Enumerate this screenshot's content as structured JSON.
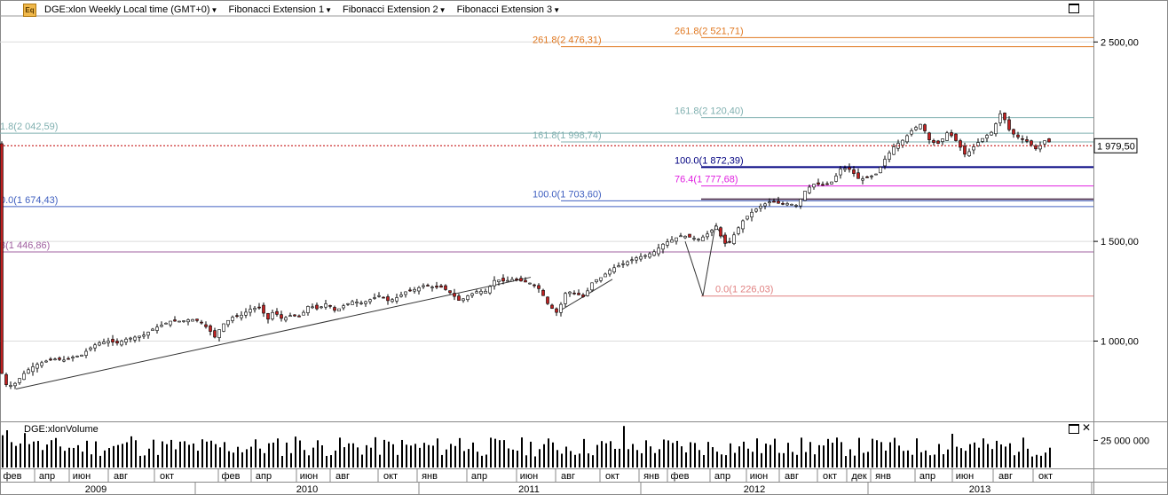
{
  "header": {
    "icon_label": "Eq",
    "symbol_title": "DGE:xlon Weekly Local time (GMT+0)",
    "menus": [
      "Fibonacci Extension 1",
      "Fibonacci Extension 2",
      "Fibonacci Extension 3"
    ]
  },
  "volume_panel": {
    "title": "DGE:xlonVolume"
  },
  "colors": {
    "candle_up": "#ffffff",
    "candle_down": "#c02020",
    "grid": "#dcdcdc",
    "current_price_line": "#c00000",
    "fib_orange": "#e07820",
    "fib_teal": "#80b0b0",
    "fib_navy": "#000080",
    "fib_magenta": "#e020e0",
    "fib_red": "#e08080",
    "fib_purple": "#a060a0"
  },
  "chart_data": {
    "type": "candlestick",
    "period": "Weekly",
    "price_axis": {
      "ticks": [
        "2 500,00",
        "1 500,00",
        "1 000,00"
      ],
      "tick_values": [
        2500,
        1500,
        1000
      ],
      "ylim": [
        700,
        2640
      ]
    },
    "current_price": {
      "label": "1 979,50",
      "value": 1979.5
    },
    "volume_axis": {
      "ticks": [
        "25 000 000"
      ]
    },
    "x_axis_months": [
      "фев",
      "апр",
      "июн",
      "авг",
      "окт",
      "фев",
      "апр",
      "июн",
      "авг",
      "окт",
      "янв",
      "апр",
      "июн",
      "авг",
      "окт",
      "янв",
      "фев",
      "апр",
      "июн",
      "авг",
      "окт",
      "дек",
      "янв",
      "апр",
      "июн",
      "авг",
      "окт"
    ],
    "x_axis_years": [
      "2009",
      "2010",
      "2011",
      "2012",
      "2013"
    ],
    "fibonacci_levels": [
      {
        "label": "261.8(2 521,71)",
        "value": 2521.71,
        "color": "#e07820"
      },
      {
        "label": "261.8(2 476,31)",
        "value": 2476.31,
        "color": "#e07820"
      },
      {
        "label": "161.8(2 120,40)",
        "value": 2120.4,
        "color": "#80b0b0"
      },
      {
        "label": "1.8(2 042,59)",
        "value": 2042.59,
        "color": "#80b0b0"
      },
      {
        "label": "161.8(1 998,74)",
        "value": 1998.74,
        "color": "#80b0b0"
      },
      {
        "label": "100.0(1 872,39)",
        "value": 1872.39,
        "color": "#000080"
      },
      {
        "label": "76.4(1 777,68)",
        "value": 1777.68,
        "color": "#e020e0"
      },
      {
        "label": "100.0(1 703,60)",
        "value": 1703.6,
        "color": "#4060c0"
      },
      {
        "label": "0.0(1 674,43)",
        "value": 1674.43,
        "color": "#4060c0"
      },
      {
        "label": "8(1 446,86)",
        "value": 1446.86,
        "color": "#a060a0"
      },
      {
        "label": "0.0(1 226,03)",
        "value": 1226.03,
        "color": "#e08080"
      }
    ],
    "price_path": [
      [
        0,
        860
      ],
      [
        8,
        770
      ],
      [
        18,
        790
      ],
      [
        25,
        830
      ],
      [
        33,
        860
      ],
      [
        40,
        880
      ],
      [
        52,
        900
      ],
      [
        62,
        910
      ],
      [
        72,
        905
      ],
      [
        82,
        920
      ],
      [
        92,
        930
      ],
      [
        100,
        960
      ],
      [
        110,
        990
      ],
      [
        122,
        1000
      ],
      [
        132,
        990
      ],
      [
        142,
        1010
      ],
      [
        152,
        1020
      ],
      [
        162,
        1030
      ],
      [
        172,
        1060
      ],
      [
        182,
        1080
      ],
      [
        192,
        1100
      ],
      [
        205,
        1100
      ],
      [
        215,
        1110
      ],
      [
        225,
        1100
      ],
      [
        235,
        1060
      ],
      [
        242,
        1020
      ],
      [
        250,
        1080
      ],
      [
        262,
        1120
      ],
      [
        272,
        1130
      ],
      [
        282,
        1160
      ],
      [
        292,
        1170
      ],
      [
        302,
        1110
      ],
      [
        308,
        1150
      ],
      [
        318,
        1110
      ],
      [
        328,
        1130
      ],
      [
        338,
        1120
      ],
      [
        348,
        1180
      ],
      [
        358,
        1160
      ],
      [
        368,
        1190
      ],
      [
        378,
        1150
      ],
      [
        388,
        1180
      ],
      [
        398,
        1200
      ],
      [
        408,
        1190
      ],
      [
        418,
        1210
      ],
      [
        428,
        1230
      ],
      [
        438,
        1200
      ],
      [
        448,
        1220
      ],
      [
        458,
        1250
      ],
      [
        468,
        1260
      ],
      [
        478,
        1280
      ],
      [
        488,
        1270
      ],
      [
        498,
        1270
      ],
      [
        508,
        1240
      ],
      [
        518,
        1200
      ],
      [
        528,
        1230
      ],
      [
        538,
        1250
      ],
      [
        548,
        1250
      ],
      [
        558,
        1310
      ],
      [
        568,
        1300
      ],
      [
        578,
        1310
      ],
      [
        588,
        1300
      ],
      [
        598,
        1290
      ],
      [
        608,
        1260
      ],
      [
        618,
        1180
      ],
      [
        628,
        1140
      ],
      [
        638,
        1250
      ],
      [
        648,
        1240
      ],
      [
        658,
        1220
      ],
      [
        668,
        1300
      ],
      [
        678,
        1320
      ],
      [
        688,
        1360
      ],
      [
        698,
        1380
      ],
      [
        708,
        1400
      ],
      [
        718,
        1420
      ],
      [
        728,
        1430
      ],
      [
        738,
        1450
      ],
      [
        748,
        1490
      ],
      [
        758,
        1510
      ],
      [
        768,
        1530
      ],
      [
        778,
        1520
      ],
      [
        788,
        1510
      ],
      [
        798,
        1540
      ],
      [
        808,
        1580
      ],
      [
        814,
        1500
      ],
      [
        820,
        1480
      ],
      [
        828,
        1540
      ],
      [
        838,
        1610
      ],
      [
        848,
        1650
      ],
      [
        858,
        1680
      ],
      [
        868,
        1700
      ],
      [
        878,
        1690
      ],
      [
        888,
        1690
      ],
      [
        898,
        1680
      ],
      [
        908,
        1760
      ],
      [
        918,
        1790
      ],
      [
        928,
        1780
      ],
      [
        938,
        1800
      ],
      [
        948,
        1870
      ],
      [
        958,
        1860
      ],
      [
        968,
        1810
      ],
      [
        978,
        1820
      ],
      [
        988,
        1840
      ],
      [
        998,
        1920
      ],
      [
        1008,
        1980
      ],
      [
        1018,
        2010
      ],
      [
        1028,
        2060
      ],
      [
        1038,
        2090
      ],
      [
        1048,
        2000
      ],
      [
        1058,
        1990
      ],
      [
        1068,
        2050
      ],
      [
        1078,
        2000
      ],
      [
        1088,
        1930
      ],
      [
        1098,
        1980
      ],
      [
        1108,
        2020
      ],
      [
        1118,
        2050
      ],
      [
        1128,
        2150
      ],
      [
        1138,
        2050
      ],
      [
        1148,
        2020
      ],
      [
        1158,
        2000
      ],
      [
        1168,
        1960
      ],
      [
        1178,
        2010
      ],
      [
        1185,
        1990
      ]
    ],
    "volume_ylim": [
      0,
      40000000
    ]
  }
}
